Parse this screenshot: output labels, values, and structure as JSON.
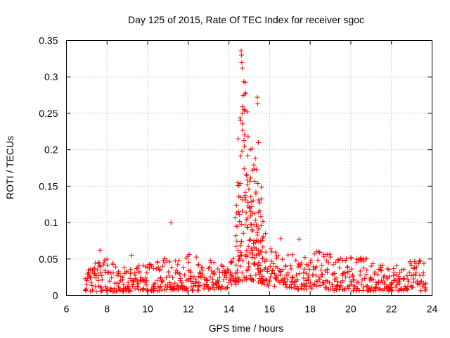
{
  "chart_data": {
    "type": "scatter",
    "title": "Day 125 of 2015, Rate Of TEC Index for receiver sgoc",
    "xlabel": "GPS time / hours",
    "ylabel": "ROTI / TECUs",
    "xlim": [
      6,
      24
    ],
    "ylim": [
      0,
      0.35
    ],
    "x_ticks": [
      "6",
      "8",
      "10",
      "12",
      "14",
      "16",
      "18",
      "20",
      "22",
      "24"
    ],
    "y_ticks": [
      "0",
      "0.05",
      "0.1",
      "0.15",
      "0.2",
      "0.25",
      "0.3",
      "0.35"
    ],
    "grid": true,
    "marker": "+",
    "series": [
      {
        "name": "ROTI",
        "color": "#ff0000",
        "notable_points": [
          {
            "x": 11.15,
            "y": 0.1
          },
          {
            "x": 14.6,
            "y": 0.336
          },
          {
            "x": 14.62,
            "y": 0.33
          },
          {
            "x": 14.63,
            "y": 0.32
          },
          {
            "x": 14.65,
            "y": 0.312
          },
          {
            "x": 14.8,
            "y": 0.292
          },
          {
            "x": 14.82,
            "y": 0.278
          },
          {
            "x": 14.75,
            "y": 0.255
          },
          {
            "x": 14.9,
            "y": 0.252
          },
          {
            "x": 15.4,
            "y": 0.272
          },
          {
            "x": 15.42,
            "y": 0.263
          },
          {
            "x": 15.45,
            "y": 0.21
          },
          {
            "x": 15.3,
            "y": 0.188
          },
          {
            "x": 14.45,
            "y": 0.215
          },
          {
            "x": 15.05,
            "y": 0.2
          },
          {
            "x": 17.45,
            "y": 0.077
          },
          {
            "x": 16.55,
            "y": 0.078
          },
          {
            "x": 15.8,
            "y": 0.085
          },
          {
            "x": 7.65,
            "y": 0.062
          },
          {
            "x": 9.2,
            "y": 0.055
          }
        ],
        "profile": {
          "x_start": 6.95,
          "x_end": 23.75,
          "x_step": 0.1,
          "x": [
            7.0,
            7.5,
            8.0,
            8.5,
            9.0,
            9.5,
            10.0,
            10.5,
            11.0,
            11.5,
            12.0,
            12.5,
            13.0,
            13.5,
            14.0,
            14.25,
            14.5,
            14.75,
            15.0,
            15.25,
            15.5,
            15.75,
            16.0,
            16.5,
            17.0,
            17.5,
            18.0,
            18.5,
            19.0,
            19.5,
            20.0,
            20.5,
            21.0,
            21.5,
            22.0,
            22.5,
            23.0,
            23.5,
            23.75
          ],
          "upper": [
            0.034,
            0.048,
            0.052,
            0.038,
            0.044,
            0.042,
            0.043,
            0.048,
            0.058,
            0.052,
            0.06,
            0.05,
            0.048,
            0.052,
            0.045,
            0.06,
            0.24,
            0.3,
            0.22,
            0.19,
            0.17,
            0.07,
            0.065,
            0.06,
            0.058,
            0.055,
            0.062,
            0.062,
            0.062,
            0.055,
            0.052,
            0.052,
            0.05,
            0.043,
            0.042,
            0.04,
            0.055,
            0.05,
            0.035
          ],
          "lower": [
            0.006,
            0.005,
            0.004,
            0.006,
            0.005,
            0.008,
            0.006,
            0.006,
            0.008,
            0.006,
            0.006,
            0.007,
            0.008,
            0.008,
            0.01,
            0.012,
            0.018,
            0.02,
            0.022,
            0.02,
            0.018,
            0.015,
            0.012,
            0.01,
            0.01,
            0.008,
            0.008,
            0.008,
            0.007,
            0.006,
            0.006,
            0.006,
            0.006,
            0.006,
            0.006,
            0.006,
            0.006,
            0.006,
            0.006
          ]
        }
      }
    ]
  }
}
